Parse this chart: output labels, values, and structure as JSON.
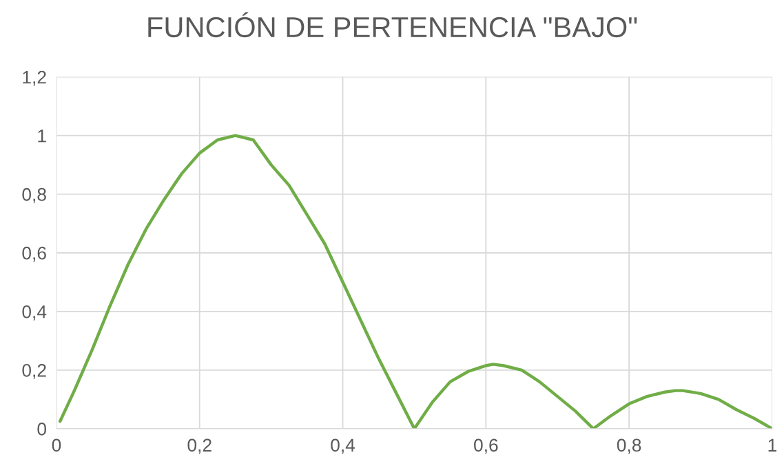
{
  "chart_data": {
    "type": "line",
    "title": "FUNCIÓN DE PERTENENCIA \"BAJO\"",
    "x": [
      0.005,
      0.025,
      0.05,
      0.075,
      0.1,
      0.125,
      0.15,
      0.175,
      0.2,
      0.225,
      0.25,
      0.275,
      0.3,
      0.325,
      0.35,
      0.375,
      0.4,
      0.425,
      0.45,
      0.475,
      0.5,
      0.525,
      0.55,
      0.575,
      0.6,
      0.61,
      0.625,
      0.65,
      0.675,
      0.7,
      0.725,
      0.75,
      0.775,
      0.8,
      0.825,
      0.85,
      0.865,
      0.875,
      0.9,
      0.925,
      0.95,
      0.975,
      1
    ],
    "series": [
      {
        "color": "#70ad47",
        "values": [
          0.025,
          0.13,
          0.27,
          0.42,
          0.56,
          0.68,
          0.78,
          0.87,
          0.94,
          0.985,
          1,
          0.985,
          0.9,
          0.83,
          0.73,
          0.63,
          0.5,
          0.37,
          0.24,
          0.12,
          0,
          0.09,
          0.16,
          0.195,
          0.215,
          0.22,
          0.215,
          0.2,
          0.16,
          0.11,
          0.06,
          0,
          0.045,
          0.085,
          0.11,
          0.125,
          0.13,
          0.13,
          0.12,
          0.1,
          0.065,
          0.035,
          0
        ]
      }
    ],
    "xlim": [
      0,
      1
    ],
    "ylim": [
      0,
      1.2
    ],
    "xticks": [
      0,
      {
        "value": 0.2,
        "label": "0,2"
      },
      {
        "value": 0.4,
        "label": "0,4"
      },
      {
        "value": 0.6,
        "label": "0,6"
      },
      {
        "value": 0.8,
        "label": "0,8"
      },
      1
    ],
    "yticks": [
      0,
      {
        "value": 0.2,
        "label": "0,2"
      },
      {
        "value": 0.4,
        "label": "0,4"
      },
      {
        "value": 0.6,
        "label": "0,6"
      },
      {
        "value": 0.8,
        "label": "0,8"
      },
      1,
      {
        "value": 1.2,
        "label": "1,2"
      }
    ],
    "grid": true,
    "marker": "none",
    "line_style": "solid"
  }
}
